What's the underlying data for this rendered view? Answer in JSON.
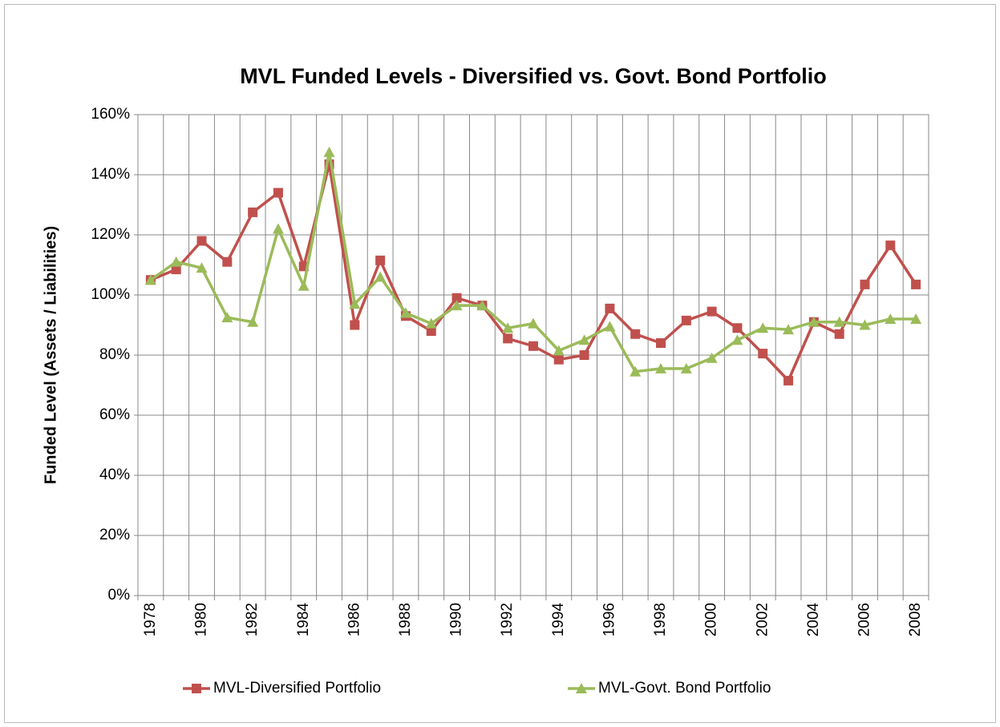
{
  "chart_data": {
    "type": "line",
    "title": "MVL Funded Levels - Diversified vs. Govt. Bond Portfolio",
    "y_label": "Funded Level (Assets / Liabilities)",
    "categories": [
      "1978",
      null,
      "1980",
      null,
      "1982",
      null,
      "1984",
      null,
      "1986",
      null,
      "1988",
      null,
      "1990",
      null,
      "1992",
      null,
      "1994",
      null,
      "1996",
      null,
      "1998",
      null,
      "2000",
      null,
      "2002",
      null,
      "2004",
      null,
      "2006",
      null,
      "2008"
    ],
    "series": [
      {
        "name": "MVL-Diversified Portfolio",
        "color": "#c0504d",
        "marker": "square",
        "values": [
          105,
          108.5,
          118,
          111,
          127.5,
          134,
          109.5,
          143.5,
          90,
          111.5,
          93,
          88,
          99,
          96.5,
          85.5,
          83,
          78.5,
          80,
          95.5,
          87,
          84,
          91.5,
          94.5,
          89,
          80.5,
          71.5,
          91,
          87,
          103.5,
          116.5,
          103.5
        ]
      },
      {
        "name": "MVL-Govt. Bond Portfolio",
        "color": "#9bbb59",
        "marker": "triangle",
        "values": [
          105,
          111,
          109,
          92.5,
          91,
          122,
          103,
          147.5,
          97,
          106,
          94,
          90.5,
          96.5,
          96.5,
          89,
          90.5,
          81.5,
          85,
          89.5,
          74.5,
          75.5,
          75.5,
          79,
          85,
          89,
          88.5,
          91,
          91,
          90,
          92,
          92
        ]
      }
    ],
    "ylim": [
      0,
      160
    ],
    "yticks": [
      {
        "value": 0,
        "label": "0%"
      },
      {
        "value": 20,
        "label": "20%"
      },
      {
        "value": 40,
        "label": "40%"
      },
      {
        "value": 60,
        "label": "60%"
      },
      {
        "value": 80,
        "label": "80%"
      },
      {
        "value": 100,
        "label": "100%"
      },
      {
        "value": 120,
        "label": "120%"
      },
      {
        "value": 140,
        "label": "140%"
      },
      {
        "value": 160,
        "label": "160%"
      }
    ],
    "grid": true,
    "legend": "bottom"
  }
}
